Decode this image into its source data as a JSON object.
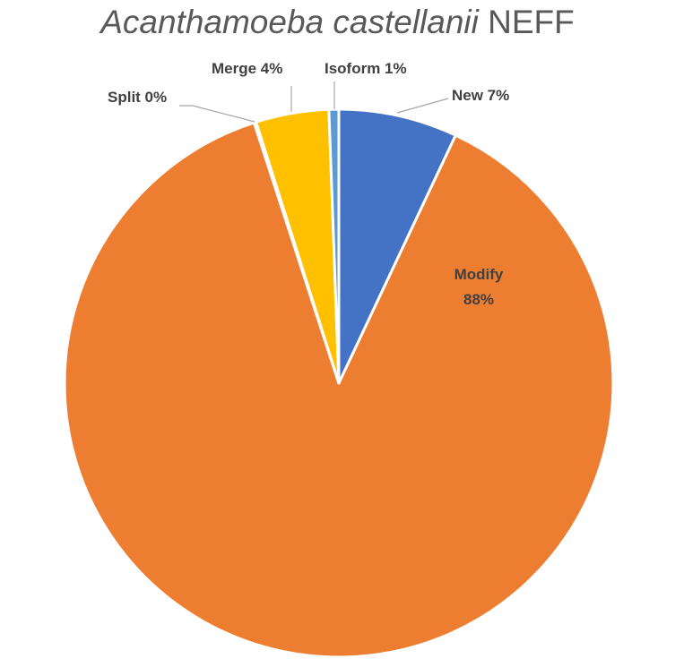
{
  "chart_data": {
    "type": "pie",
    "title_italic": "Acanthamoeba castellanii",
    "title_rest": "NEFF",
    "slices": [
      {
        "name": "New",
        "value": 7,
        "label": "New 7%",
        "color": "#4472C4"
      },
      {
        "name": "Modify",
        "value": 88,
        "label": "Modify",
        "label2": "88%",
        "color": "#ED7D31"
      },
      {
        "name": "Split",
        "value": 0.12,
        "label": "Split 0%",
        "color": "#A5A5A5"
      },
      {
        "name": "Merge",
        "value": 4.3,
        "label": "Merge 4%",
        "color": "#FFC000"
      },
      {
        "name": "Isoform",
        "value": 0.58,
        "label": "Isoform 1%",
        "color": "#5B9BD5"
      }
    ],
    "legend": "none",
    "data_labels": "outside with leader lines"
  }
}
